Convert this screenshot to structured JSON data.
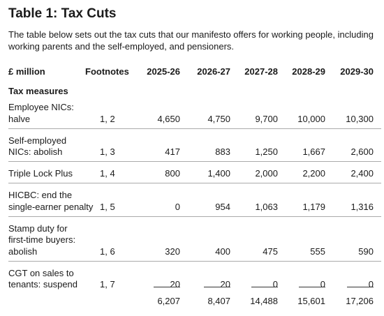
{
  "header": {
    "title": "Table 1: Tax Cuts",
    "intro": "The table below sets out the tax cuts that our manifesto offers for working people, including working parents and the self-employed, and pensioners."
  },
  "table": {
    "columns": [
      "£ million",
      "Footnotes",
      "2025-26",
      "2026-27",
      "2027-28",
      "2028-29",
      "2029-30"
    ],
    "section": "Tax measures",
    "rows": [
      {
        "label": [
          "Employee NICs:",
          "halve"
        ],
        "footnotes": "1, 2",
        "values": [
          "4,650",
          "4,750",
          "9,700",
          "10,000",
          "10,300"
        ]
      },
      {
        "label": [
          "Self-employed",
          "NICs: abolish"
        ],
        "footnotes": "1, 3",
        "values": [
          "417",
          "883",
          "1,250",
          "1,667",
          "2,600"
        ]
      },
      {
        "label": [
          "Triple Lock Plus"
        ],
        "footnotes": "1, 4",
        "values": [
          "800",
          "1,400",
          "2,000",
          "2,200",
          "2,400"
        ]
      },
      {
        "label": [
          "HICBC: end the",
          "single-earner penalty"
        ],
        "footnotes": "1, 5",
        "values": [
          "0",
          "954",
          "1,063",
          "1,179",
          "1,316"
        ]
      },
      {
        "label": [
          "Stamp duty for",
          "first-time buyers:",
          "abolish"
        ],
        "footnotes": "1, 6",
        "values": [
          "320",
          "400",
          "475",
          "555",
          "590"
        ]
      },
      {
        "label": [
          "CGT on sales to",
          "tenants: suspend"
        ],
        "footnotes": "1, 7",
        "values": [
          "20",
          "20",
          "0",
          "0",
          "0"
        ]
      }
    ],
    "totals": [
      "6,207",
      "8,407",
      "14,488",
      "15,601",
      "17,206"
    ]
  }
}
